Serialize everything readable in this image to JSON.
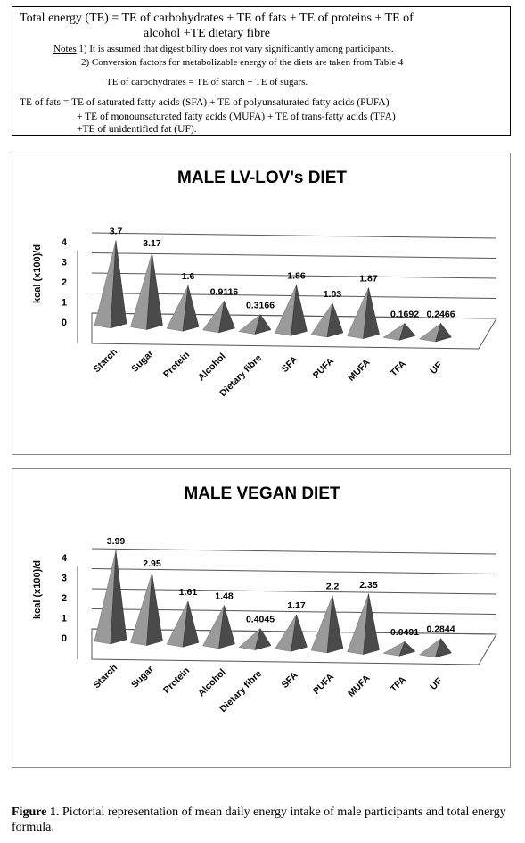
{
  "formula_box": {
    "line1": "Total energy (TE) = TE of carbohydrates + TE of fats + TE of proteins + TE of",
    "line2": "alcohol +TE dietary fibre",
    "notes_label": "Notes",
    "note1": " 1) It is assumed that digestibility does not vary significantly among participants.",
    "note2": "2) Conversion factors for metabolizable energy of the diets are taken from Table 4",
    "carb_formula": "TE of carbohydrates = TE of starch + TE of sugars.",
    "fats_line1": "TE of fats = TE of saturated fatty acids (SFA) + TE of polyunsaturated fatty acids (PUFA)",
    "fats_line2": "+ TE of monounsaturated fatty acids (MUFA) + TE of trans-fatty acids (TFA)",
    "fats_line3": "+TE of unidentified fat (UF)."
  },
  "caption": {
    "label": "Figure 1.",
    "text": " Pictorial representation of mean daily energy intake of male participants and total energy formula."
  },
  "colors": {
    "cone_light": "#9a9a9a",
    "cone_dark": "#4a4a4a",
    "axis_line": "#555555",
    "frame": "#8c8c8c"
  },
  "chart_data": [
    {
      "type": "bar",
      "style": "3d-pyramid",
      "title": "MALE  LV-LOV's DIET",
      "ylabel": "kcal (x100)/d",
      "xlabel": "",
      "ylim": [
        0,
        4
      ],
      "yticks": [
        "0",
        "1",
        "2",
        "3",
        "4"
      ],
      "categories": [
        "Starch",
        "Sugar",
        "Protein",
        "Alcohol",
        "Dietary fibre",
        "SFA",
        "PUFA",
        "MUFA",
        "TFA",
        "UF"
      ],
      "values": [
        3.7,
        3.17,
        1.6,
        0.9116,
        0.3166,
        1.86,
        1.03,
        1.87,
        0.1692,
        0.2466
      ],
      "labels": [
        "3.7",
        "3.17",
        "1.6",
        "0.9116",
        "0.3166",
        "1.86",
        "1.03",
        "1.87",
        "0.1692",
        "0.2466"
      ],
      "grid": true
    },
    {
      "type": "bar",
      "style": "3d-pyramid",
      "title": "MALE VEGAN DIET",
      "ylabel": "kcal (x100)/d",
      "xlabel": "",
      "ylim": [
        0,
        4
      ],
      "yticks": [
        "0",
        "1",
        "2",
        "3",
        "4"
      ],
      "categories": [
        "Starch",
        "Sugar",
        "Protein",
        "Alcohol",
        "Dietary fibre",
        "SFA",
        "PUFA",
        "MUFA",
        "TFA",
        "UF"
      ],
      "values": [
        3.99,
        2.95,
        1.61,
        1.48,
        0.4045,
        1.17,
        2.2,
        2.35,
        0.0491,
        0.2844
      ],
      "labels": [
        "3.99",
        "2.95",
        "1.61",
        "1.48",
        "0.4045",
        "1.17",
        "2.2",
        "2.35",
        "0.0491",
        "0.2844"
      ],
      "grid": true
    }
  ]
}
